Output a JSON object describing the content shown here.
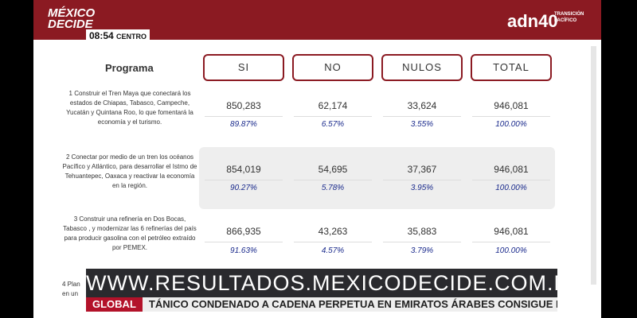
{
  "header": {
    "logo_line1": "MÉXICO",
    "logo_line2": "DECIDE",
    "time": "08:54",
    "zone": "CENTRO",
    "channel": "adn40",
    "channel_tag1": "TRANSICIÓN",
    "channel_tag2": "PACÍFICO"
  },
  "table": {
    "columns": [
      "Programa",
      "SI",
      "NO",
      "NULOS",
      "TOTAL"
    ],
    "rows": [
      {
        "program": "1 Construir el Tren Maya que conectará los estados de Chiapas, Tabasco, Campeche, Yucatán y Quintana Roo, lo que fomentará la economía y el turismo.",
        "counts": [
          "850,283",
          "62,174",
          "33,624",
          "946,081"
        ],
        "percents": [
          "89.87%",
          "6.57%",
          "3.55%",
          "100.00%"
        ]
      },
      {
        "program": "2 Conectar por medio de un tren los océanos Pacífico y Atlántico, para desarrollar el Istmo de Tehuantepec, Oaxaca y reactivar la economía en la región.",
        "counts": [
          "854,019",
          "54,695",
          "37,367",
          "946,081"
        ],
        "percents": [
          "90.27%",
          "5.78%",
          "3.95%",
          "100.00%"
        ]
      },
      {
        "program": "3 Construir una refinería en Dos Bocas, Tabasco , y modernizar las 6 refinerías del país para producir gasolina con el petróleo extraído por PEMEX.",
        "counts": [
          "866,935",
          "43,263",
          "35,883",
          "946,081"
        ],
        "percents": [
          "91.63%",
          "4.57%",
          "3.79%",
          "100.00%"
        ]
      }
    ],
    "partial_row": [
      "4 Plan",
      "en un"
    ]
  },
  "banner": "WWW.RESULTADOS.MEXICODECIDE.COM.MX",
  "ticker": {
    "tag": "GLOBAL",
    "text": "TÁNICO CONDENADO A CADENA PERPETUA EN EMIRATOS ÁRABES CONSIGUE PERDÓN"
  }
}
